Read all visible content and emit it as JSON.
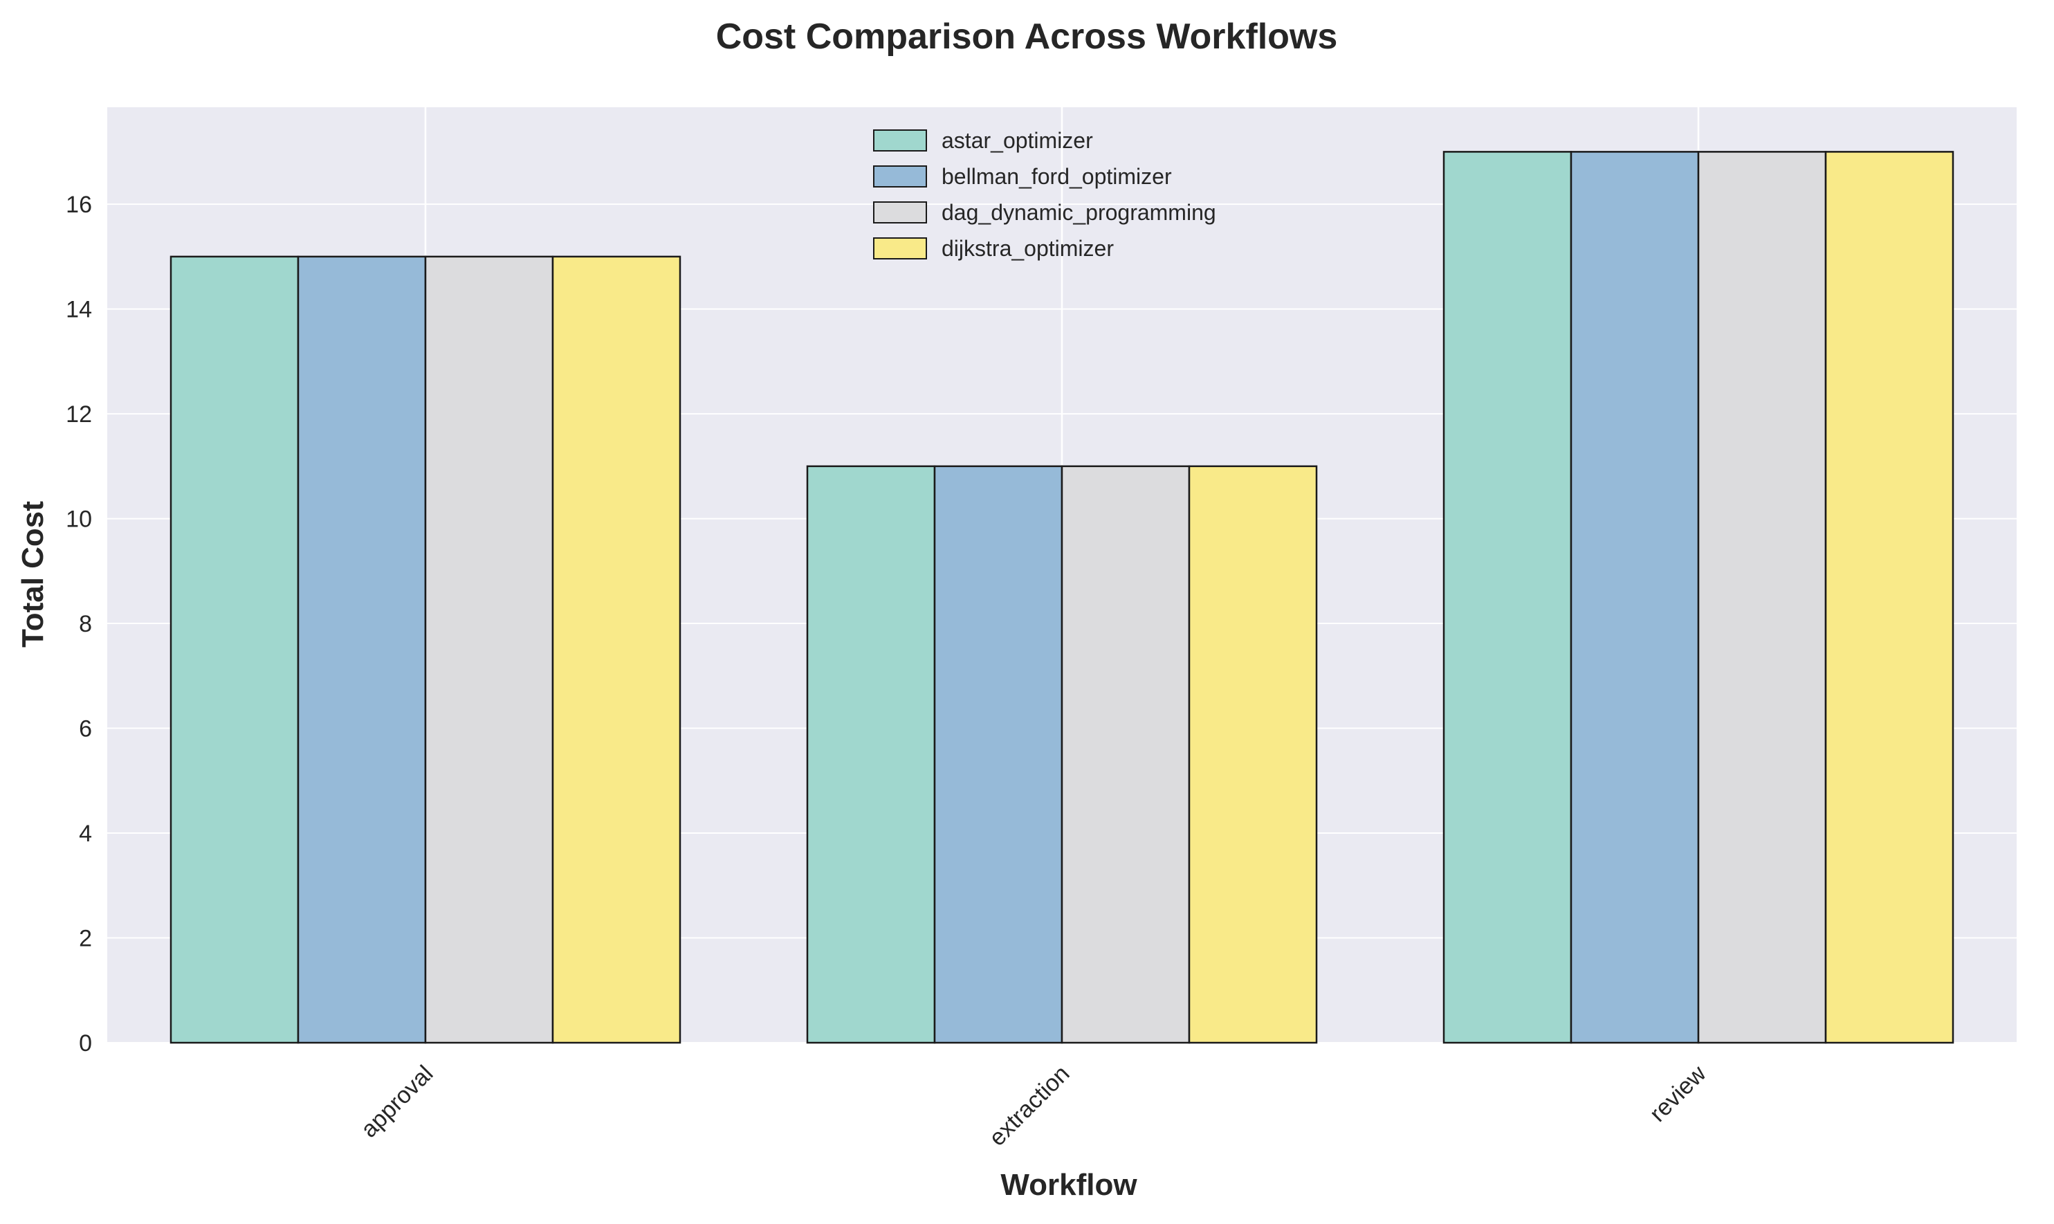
{
  "chart_data": {
    "type": "bar",
    "title": "Cost Comparison Across Workflows",
    "xlabel": "Workflow",
    "ylabel": "Total Cost",
    "categories": [
      "approval",
      "extraction",
      "review"
    ],
    "ylim": [
      0,
      17.85
    ],
    "yticks": [
      0,
      2,
      4,
      6,
      8,
      10,
      12,
      14,
      16
    ],
    "grid": true,
    "legend_position": "upper center",
    "series": [
      {
        "name": "astar_optimizer",
        "values": [
          15,
          11,
          17
        ],
        "color": "#a0d7ce"
      },
      {
        "name": "bellman_ford_optimizer",
        "values": [
          15,
          11,
          17
        ],
        "color": "#96bad8"
      },
      {
        "name": "dag_dynamic_programming",
        "values": [
          15,
          11,
          17
        ],
        "color": "#dcdcde"
      },
      {
        "name": "dijkstra_optimizer",
        "values": [
          15,
          11,
          17
        ],
        "color": "#f9ea89"
      }
    ],
    "colors": {
      "plot_background": "#eaeaf2",
      "grid": "#ffffff",
      "bar_edge": "#1a1a1a"
    }
  }
}
